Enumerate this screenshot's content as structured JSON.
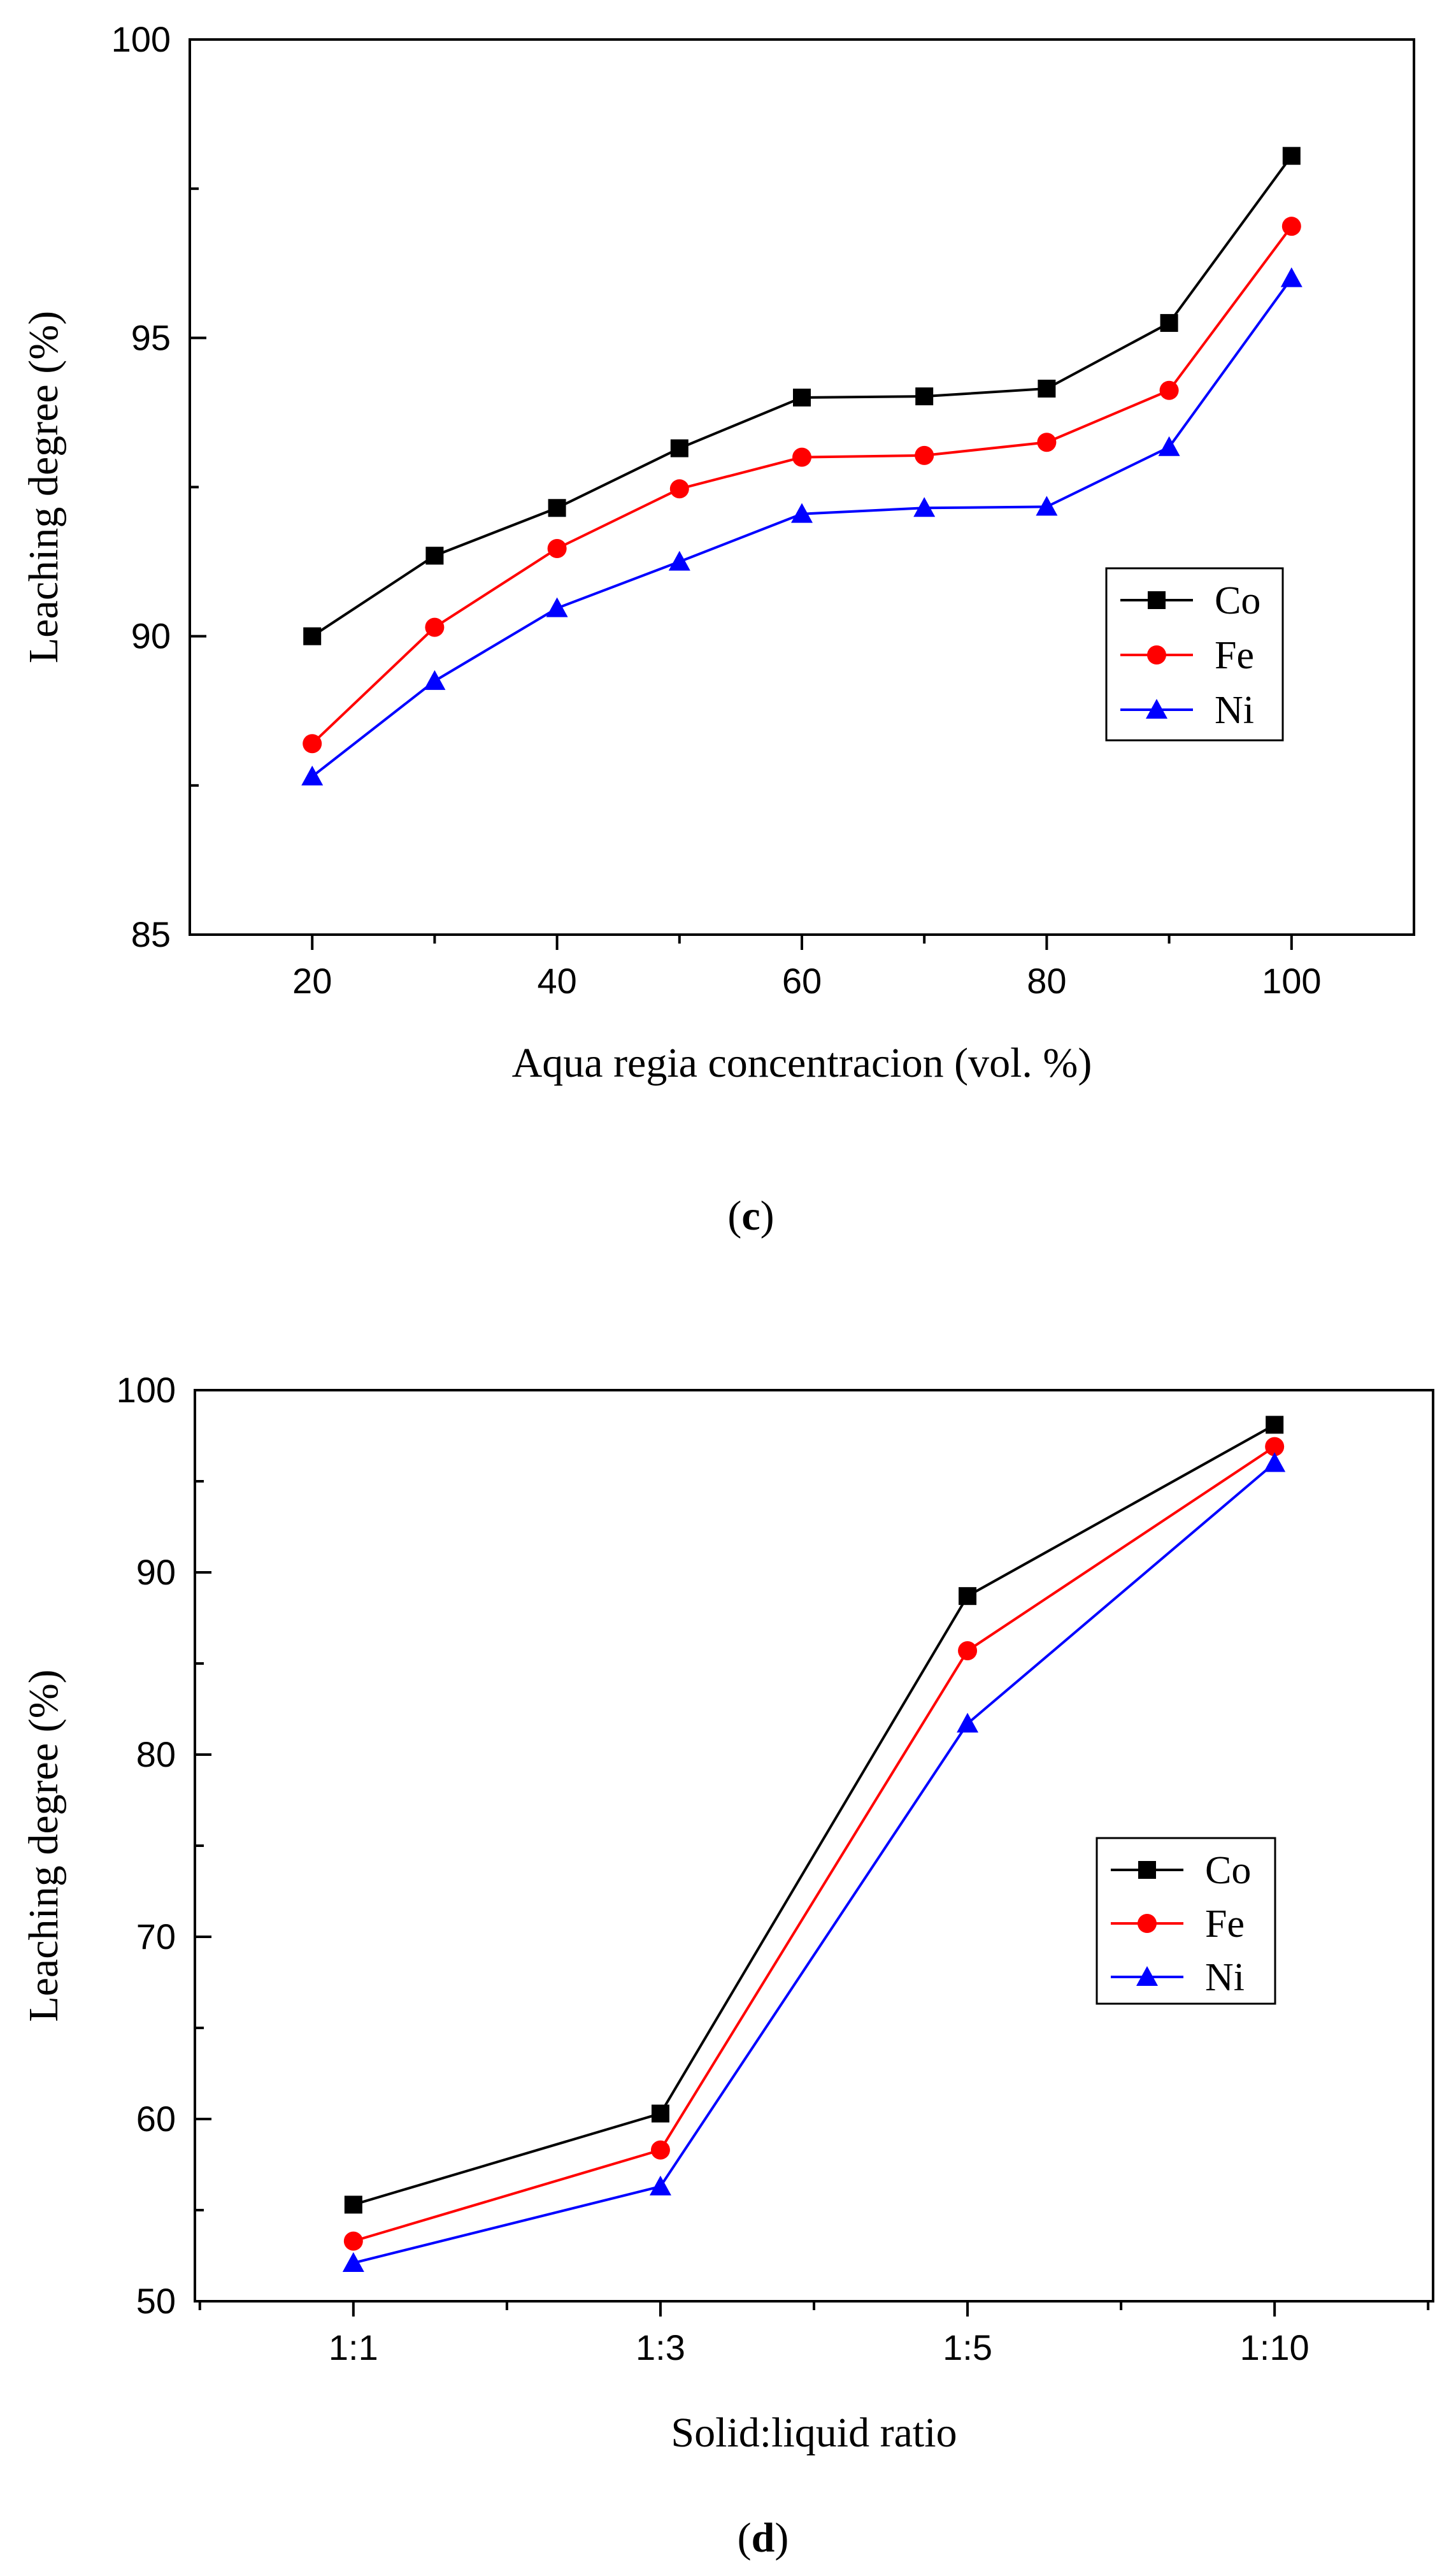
{
  "chart_data": [
    {
      "type": "line",
      "panel_label": "c",
      "xlabel": "Aqua regia concentracion (vol. %)",
      "ylabel": "Leaching degree (%)",
      "x": [
        20,
        30,
        40,
        50,
        60,
        70,
        80,
        90,
        100
      ],
      "xlim": [
        10,
        110
      ],
      "ylim": [
        85,
        100
      ],
      "xticks": [
        20,
        40,
        60,
        80,
        100
      ],
      "yticks": [
        85,
        90,
        95,
        100
      ],
      "grid": false,
      "legend_position": "right",
      "series": [
        {
          "name": "Co",
          "color": "#000000",
          "marker": "square",
          "values": [
            90.0,
            91.35,
            92.15,
            93.15,
            94.0,
            94.02,
            94.15,
            95.25,
            98.05
          ]
        },
        {
          "name": "Fe",
          "color": "#ff0000",
          "marker": "circle",
          "values": [
            88.2,
            90.15,
            91.47,
            92.47,
            93.0,
            93.03,
            93.25,
            94.12,
            96.87
          ]
        },
        {
          "name": "Ni",
          "color": "#0000ff",
          "marker": "triangle",
          "values": [
            87.65,
            89.25,
            90.47,
            91.25,
            92.05,
            92.15,
            92.17,
            93.17,
            96.0
          ]
        }
      ]
    },
    {
      "type": "line",
      "panel_label": "d",
      "xlabel": "Solid:liquid ratio",
      "ylabel": "Leaching degree (%)",
      "categories": [
        "1:1",
        "1:3",
        "1:5",
        "1:10"
      ],
      "ylim": [
        50,
        100
      ],
      "yticks": [
        50,
        60,
        70,
        80,
        90,
        100
      ],
      "grid": false,
      "legend_position": "right",
      "series": [
        {
          "name": "Co",
          "color": "#000000",
          "marker": "square",
          "values": [
            55.3,
            60.3,
            88.7,
            98.1
          ]
        },
        {
          "name": "Fe",
          "color": "#ff0000",
          "marker": "circle",
          "values": [
            53.3,
            58.3,
            85.7,
            96.9
          ]
        },
        {
          "name": "Ni",
          "color": "#0000ff",
          "marker": "triangle",
          "values": [
            52.1,
            56.3,
            81.7,
            96.0
          ]
        }
      ]
    }
  ]
}
